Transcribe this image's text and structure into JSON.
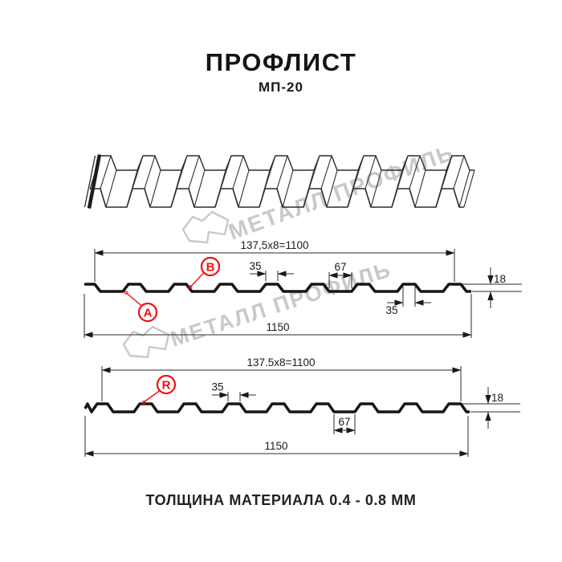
{
  "header": {
    "title": "ПРОФЛИСТ",
    "subtitle": "МП-20"
  },
  "footer": {
    "text": "ТОЛЩИНА МАТЕРИАЛА 0.4 - 0.8 ММ"
  },
  "watermark": {
    "text": "МЕТАЛЛ ПРОФИЛЬ"
  },
  "colors": {
    "accent_red": "#f01010",
    "line_black": "#151515",
    "watermark_gray": "#c9c9c9"
  },
  "profile_top": {
    "label_a": "A",
    "label_b": "B",
    "dims": {
      "pitch_total": "137,5x8=1100",
      "rib_top_width": "35",
      "valley_width": "67",
      "rib_top_width_2": "35",
      "height": "18",
      "full_width": "1150"
    }
  },
  "profile_bottom": {
    "label_r": "R",
    "dims": {
      "pitch_total": "137.5x8=1100",
      "rib_top_width": "35",
      "valley_width": "67",
      "height": "18",
      "full_width": "1150"
    }
  }
}
